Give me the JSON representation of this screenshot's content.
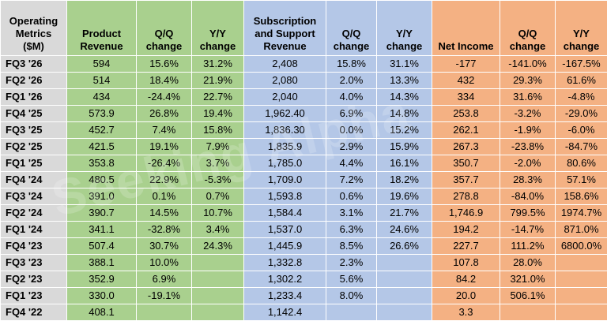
{
  "watermark": "Seeking Alpha",
  "colors": {
    "metric_col": "#d9d9d9",
    "product_group": "#a9d08e",
    "subscription_group": "#b4c7e7",
    "net_income_group": "#f4b183"
  },
  "headers": {
    "metric": "Operating Metrics ($M)",
    "product_revenue": "Product Revenue",
    "product_qq": "Q/Q change",
    "product_yy": "Y/Y change",
    "subscription_revenue": "Subscription and Support Revenue",
    "subscription_qq": "Q/Q change",
    "subscription_yy": "Y/Y change",
    "net_income": "Net Income",
    "net_income_qq": "Q/Q change",
    "net_income_yy": "Y/Y change"
  },
  "rows": [
    {
      "q": "FQ3 '26",
      "pr": "594",
      "pq": "15.6%",
      "py": "31.2%",
      "sr": "2,408",
      "sq": "15.8%",
      "sy": "31.1%",
      "ni": "-177",
      "nq": "-141.0%",
      "ny": "-167.5%"
    },
    {
      "q": "FQ2 '26",
      "pr": "514",
      "pq": "18.4%",
      "py": "21.9%",
      "sr": "2,080",
      "sq": "2.0%",
      "sy": "13.3%",
      "ni": "432",
      "nq": "29.3%",
      "ny": "61.6%"
    },
    {
      "q": "FQ1 '26",
      "pr": "434",
      "pq": "-24.4%",
      "py": "22.7%",
      "sr": "2,040",
      "sq": "4.0%",
      "sy": "14.3%",
      "ni": "334",
      "nq": "31.6%",
      "ny": "-4.8%"
    },
    {
      "q": "FQ4 '25",
      "pr": "573.9",
      "pq": "26.8%",
      "py": "19.4%",
      "sr": "1,962.40",
      "sq": "6.9%",
      "sy": "14.8%",
      "ni": "253.8",
      "nq": "-3.2%",
      "ny": "-29.0%"
    },
    {
      "q": "FQ3 '25",
      "pr": "452.7",
      "pq": "7.4%",
      "py": "15.8%",
      "sr": "1,836.30",
      "sq": "0.0%",
      "sy": "15.2%",
      "ni": "262.1",
      "nq": "-1.9%",
      "ny": "-6.0%"
    },
    {
      "q": "FQ2 '25",
      "pr": "421.5",
      "pq": "19.1%",
      "py": "7.9%",
      "sr": "1,835.9",
      "sq": "2.9%",
      "sy": "15.9%",
      "ni": "267.3",
      "nq": "-23.8%",
      "ny": "-84.7%"
    },
    {
      "q": "FQ1 '25",
      "pr": "353.8",
      "pq": "-26.4%",
      "py": "3.7%",
      "sr": "1,785.0",
      "sq": "4.4%",
      "sy": "16.1%",
      "ni": "350.7",
      "nq": "-2.0%",
      "ny": "80.6%"
    },
    {
      "q": "FQ4 '24",
      "pr": "480.5",
      "pq": "22.9%",
      "py": "-5.3%",
      "sr": "1,709.0",
      "sq": "7.2%",
      "sy": "18.2%",
      "ni": "357.7",
      "nq": "28.3%",
      "ny": "57.1%"
    },
    {
      "q": "FQ3 '24",
      "pr": "391.0",
      "pq": "0.1%",
      "py": "0.7%",
      "sr": "1,593.8",
      "sq": "0.6%",
      "sy": "19.6%",
      "ni": "278.8",
      "nq": "-84.0%",
      "ny": "158.6%"
    },
    {
      "q": "FQ2 '24",
      "pr": "390.7",
      "pq": "14.5%",
      "py": "10.7%",
      "sr": "1,584.4",
      "sq": "3.1%",
      "sy": "21.7%",
      "ni": "1,746.9",
      "nq": "799.5%",
      "ny": "1974.7%"
    },
    {
      "q": "FQ1 '24",
      "pr": "341.1",
      "pq": "-32.8%",
      "py": "3.4%",
      "sr": "1,537.0",
      "sq": "6.3%",
      "sy": "24.6%",
      "ni": "194.2",
      "nq": "-14.7%",
      "ny": "871.0%"
    },
    {
      "q": "FQ4 '23",
      "pr": "507.4",
      "pq": "30.7%",
      "py": "24.3%",
      "sr": "1,445.9",
      "sq": "8.5%",
      "sy": "26.6%",
      "ni": "227.7",
      "nq": "111.2%",
      "ny": "6800.0%"
    },
    {
      "q": "FQ3 '23",
      "pr": "388.1",
      "pq": "10.0%",
      "py": "",
      "sr": "1,332.8",
      "sq": "2.3%",
      "sy": "",
      "ni": "107.8",
      "nq": "28.0%",
      "ny": ""
    },
    {
      "q": "FQ2 '23",
      "pr": "352.9",
      "pq": "6.9%",
      "py": "",
      "sr": "1,302.2",
      "sq": "5.6%",
      "sy": "",
      "ni": "84.2",
      "nq": "321.0%",
      "ny": ""
    },
    {
      "q": "FQ1 '23",
      "pr": "330.0",
      "pq": "-19.1%",
      "py": "",
      "sr": "1,233.4",
      "sq": "8.0%",
      "sy": "",
      "ni": "20.0",
      "nq": "506.1%",
      "ny": ""
    },
    {
      "q": "FQ4 '22",
      "pr": "408.1",
      "pq": "",
      "py": "",
      "sr": "1,142.4",
      "sq": "",
      "sy": "",
      "ni": "3.3",
      "nq": "",
      "ny": ""
    }
  ]
}
